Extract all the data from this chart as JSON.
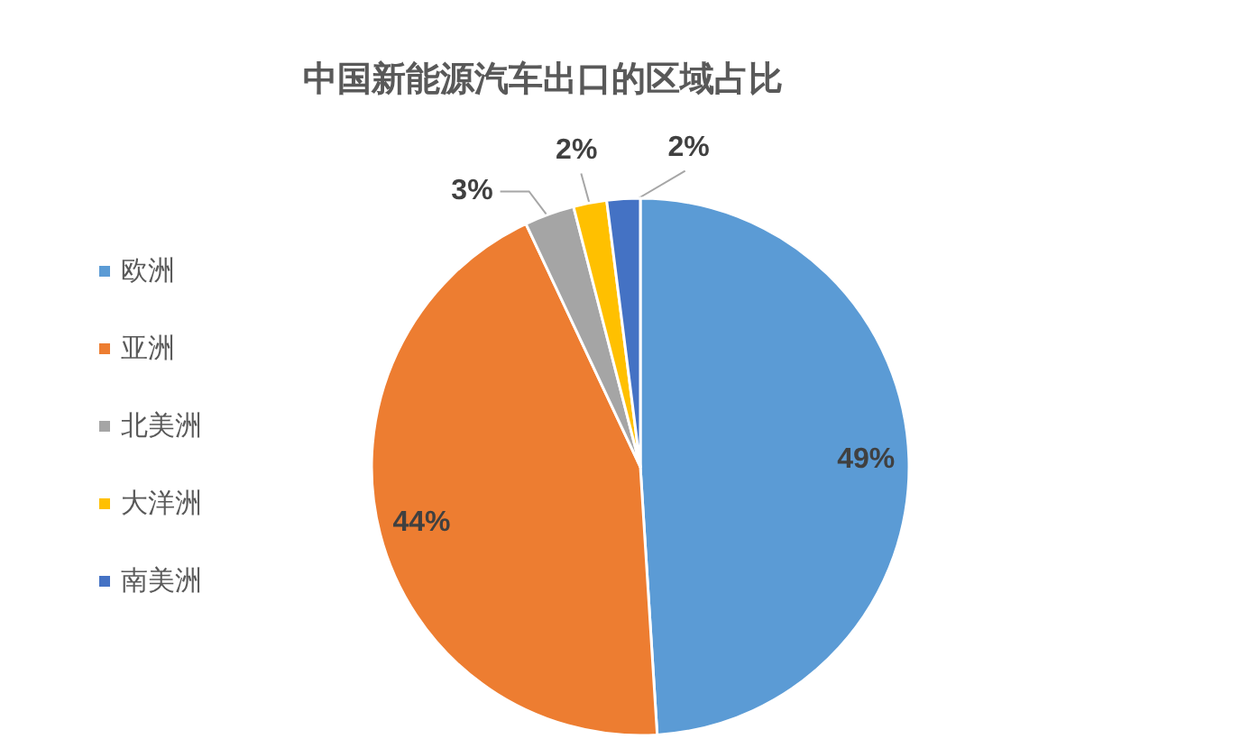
{
  "chart_data": {
    "type": "pie",
    "title": "中国新能源汽车出口的区域占比",
    "categories": [
      "欧洲",
      "亚洲",
      "北美洲",
      "大洋洲",
      "南美洲"
    ],
    "values": [
      49,
      44,
      3,
      2,
      2
    ],
    "colors": [
      "#5b9bd5",
      "#ed7d31",
      "#a5a5a5",
      "#ffc000",
      "#4472c4"
    ],
    "value_labels": [
      "49%",
      "44%",
      "3%",
      "2%",
      "2%"
    ],
    "legend": "left"
  }
}
